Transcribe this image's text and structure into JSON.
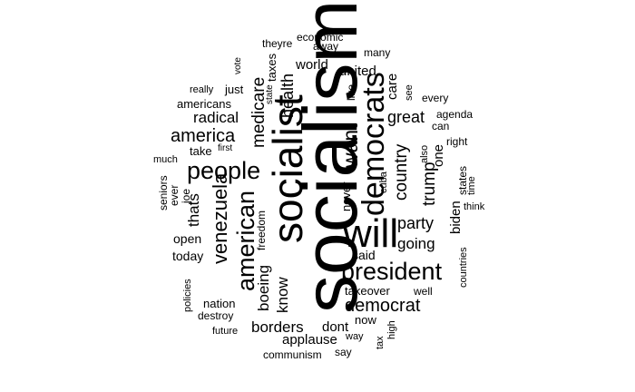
{
  "word_cloud": {
    "text_color": "#000000",
    "background_color": "#ffffff",
    "words": [
      {
        "id": "socialism",
        "text": "socialism"
      },
      {
        "id": "socialist",
        "text": "socialist"
      },
      {
        "id": "will",
        "text": "will"
      },
      {
        "id": "democrats",
        "text": "democrats"
      },
      {
        "id": "president",
        "text": "president"
      },
      {
        "id": "american",
        "text": "american"
      },
      {
        "id": "people",
        "text": "people"
      },
      {
        "id": "venezuela",
        "text": "venezuela"
      },
      {
        "id": "want",
        "text": "want"
      },
      {
        "id": "democrat",
        "text": "democrat"
      },
      {
        "id": "country",
        "text": "country"
      },
      {
        "id": "america",
        "text": "america"
      },
      {
        "id": "medicare",
        "text": "medicare"
      },
      {
        "id": "trump",
        "text": "trump"
      },
      {
        "id": "party",
        "text": "party"
      },
      {
        "id": "great",
        "text": "great"
      },
      {
        "id": "health",
        "text": "health"
      },
      {
        "id": "borders",
        "text": "borders"
      },
      {
        "id": "going",
        "text": "going"
      },
      {
        "id": "radical",
        "text": "radical"
      },
      {
        "id": "thats",
        "text": "thats"
      },
      {
        "id": "know",
        "text": "know"
      },
      {
        "id": "boeing",
        "text": "boeing"
      },
      {
        "id": "united",
        "text": "united"
      },
      {
        "id": "world",
        "text": "world"
      },
      {
        "id": "dont",
        "text": "dont"
      },
      {
        "id": "applause",
        "text": "applause"
      },
      {
        "id": "care",
        "text": "care"
      },
      {
        "id": "biden",
        "text": "biden"
      },
      {
        "id": "one",
        "text": "one"
      },
      {
        "id": "never",
        "text": "never"
      },
      {
        "id": "takeover",
        "text": "takeover"
      },
      {
        "id": "said",
        "text": "said"
      },
      {
        "id": "open",
        "text": "open"
      },
      {
        "id": "today",
        "text": "today"
      },
      {
        "id": "americans",
        "text": "americans"
      },
      {
        "id": "taxes",
        "text": "taxes"
      },
      {
        "id": "freedom",
        "text": "freedom"
      },
      {
        "id": "nation",
        "text": "nation"
      },
      {
        "id": "well",
        "text": "well"
      },
      {
        "id": "now",
        "text": "now"
      },
      {
        "id": "take",
        "text": "take"
      },
      {
        "id": "just",
        "text": "just"
      },
      {
        "id": "like",
        "text": "like"
      },
      {
        "id": "theyre",
        "text": "theyre"
      },
      {
        "id": "economic",
        "text": "economic"
      },
      {
        "id": "away",
        "text": "away"
      },
      {
        "id": "many",
        "text": "many"
      },
      {
        "id": "every",
        "text": "every"
      },
      {
        "id": "agenda",
        "text": "agenda"
      },
      {
        "id": "states",
        "text": "states"
      },
      {
        "id": "destroy",
        "text": "destroy"
      },
      {
        "id": "seniors",
        "text": "seniors"
      },
      {
        "id": "communism",
        "text": "communism"
      },
      {
        "id": "way",
        "text": "way"
      },
      {
        "id": "can",
        "text": "can"
      },
      {
        "id": "right",
        "text": "right"
      },
      {
        "id": "ever",
        "text": "ever"
      },
      {
        "id": "joe",
        "text": "joe"
      },
      {
        "id": "cuba",
        "text": "cuba"
      },
      {
        "id": "see",
        "text": "see"
      },
      {
        "id": "say",
        "text": "say"
      },
      {
        "id": "vote",
        "text": "vote"
      },
      {
        "id": "really",
        "text": "really"
      },
      {
        "id": "state",
        "text": "state"
      },
      {
        "id": "first",
        "text": "first"
      },
      {
        "id": "much",
        "text": "much"
      },
      {
        "id": "also",
        "text": "also"
      },
      {
        "id": "time",
        "text": "time"
      },
      {
        "id": "think",
        "text": "think"
      },
      {
        "id": "countries",
        "text": "countries"
      },
      {
        "id": "high",
        "text": "high"
      },
      {
        "id": "tax",
        "text": "tax"
      },
      {
        "id": "policies",
        "text": "policies"
      },
      {
        "id": "future",
        "text": "future"
      }
    ]
  }
}
